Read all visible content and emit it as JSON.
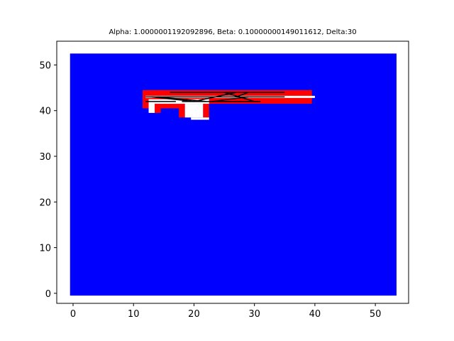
{
  "chart_data": {
    "type": "heatmap",
    "title": "Alpha: 1.0000001192092896, Beta: 0.10000000149011612, Delta:30",
    "xlabel": "",
    "ylabel": "",
    "xlim": [
      -2.7,
      55.5
    ],
    "ylim": [
      -2.2,
      55.2
    ],
    "xticks": [
      0,
      10,
      20,
      30,
      40,
      50
    ],
    "yticks": [
      0,
      10,
      20,
      30,
      40,
      50
    ],
    "grid": false,
    "legend": "none",
    "colors": {
      "background_region": "#0000ff",
      "obstacle_region": "#ff0000",
      "free_region": "#ffffff",
      "path": "#000000"
    },
    "background_region": {
      "x": [
        -0.5,
        53.5
      ],
      "y": [
        -0.5,
        52.5
      ]
    },
    "red_regions": [
      {
        "x": [
          11.5,
          39.5
        ],
        "y": [
          41.5,
          44.5
        ]
      },
      {
        "x": [
          11.5,
          12.5
        ],
        "y": [
          40.5,
          41.5
        ]
      },
      {
        "x": [
          13.5,
          18.5
        ],
        "y": [
          40.5,
          41.5
        ]
      },
      {
        "x": [
          13.5,
          14.5
        ],
        "y": [
          39.5,
          40.5
        ]
      },
      {
        "x": [
          17.5,
          18.5
        ],
        "y": [
          38.5,
          40.5
        ]
      },
      {
        "x": [
          21.5,
          22.5
        ],
        "y": [
          38.5,
          41.5
        ]
      }
    ],
    "white_regions": [
      {
        "x": [
          12.5,
          13.5
        ],
        "y": [
          39.5,
          42.5
        ]
      },
      {
        "x": [
          13.5,
          22.5
        ],
        "y": [
          41.5,
          42.5
        ]
      },
      {
        "x": [
          18.5,
          21.5
        ],
        "y": [
          38.5,
          41.5
        ]
      },
      {
        "x": [
          19.5,
          22.5
        ],
        "y": [
          38.0,
          38.5
        ]
      }
    ],
    "white_lines": [
      {
        "x": [
          12.0,
          40.0
        ],
        "y": [
          43.0,
          43.0
        ]
      }
    ],
    "path_lines": [
      {
        "x": [
          16.0,
          35.0
        ],
        "y": [
          44.0,
          44.0
        ]
      },
      {
        "x": [
          12.0,
          35.0
        ],
        "y": [
          43.0,
          43.0
        ]
      },
      {
        "x": [
          18.0,
          31.0
        ],
        "y": [
          42.0,
          42.0
        ]
      },
      {
        "x": [
          13.0,
          20.0
        ],
        "y": [
          43.0,
          42.0
        ]
      },
      {
        "x": [
          20.0,
          27.0
        ],
        "y": [
          42.0,
          44.0
        ]
      },
      {
        "x": [
          25.0,
          30.0
        ],
        "y": [
          44.0,
          42.0
        ]
      },
      {
        "x": [
          27.0,
          29.0
        ],
        "y": [
          43.0,
          44.0
        ]
      },
      {
        "x": [
          23.0,
          29.0
        ],
        "y": [
          42.0,
          43.0
        ]
      },
      {
        "x": [
          12.0,
          17.0
        ],
        "y": [
          42.0,
          42.0
        ]
      },
      {
        "x": [
          14.0,
          22.0
        ],
        "y": [
          43.0,
          42.0
        ]
      }
    ]
  }
}
